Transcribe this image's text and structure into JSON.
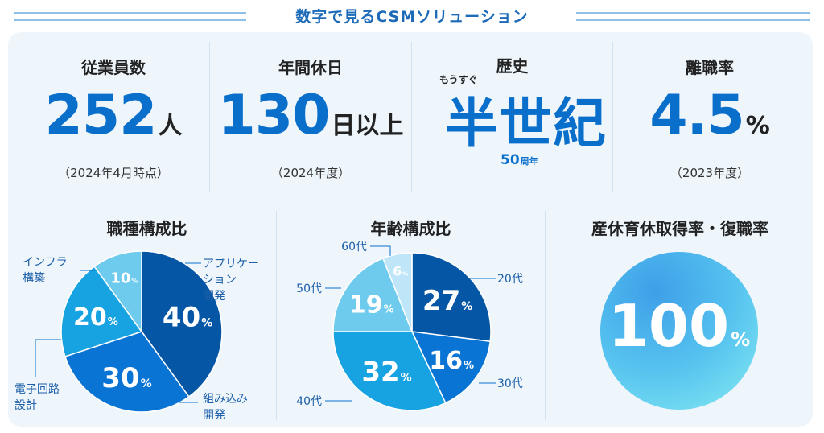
{
  "header": {
    "title": "数字で見るCSMソリューション"
  },
  "stats": {
    "employees": {
      "label": "従業員数",
      "value": "252",
      "unit": "人",
      "note": "（2024年4月時点）"
    },
    "holidays": {
      "label": "年間休日",
      "value": "130",
      "unit": "日以上",
      "note": "（2024年度）"
    },
    "history": {
      "label": "歴史",
      "ruby": "もうすぐ",
      "value": "半世紀",
      "years": "50",
      "years_unit": "周年"
    },
    "turnover": {
      "label": "離職率",
      "value": "4.5",
      "unit": "%",
      "note": "（2023年度）"
    }
  },
  "job_section": {
    "title": "職種構成比"
  },
  "age_section": {
    "title": "年齢構成比"
  },
  "leave_section": {
    "title": "産休育休取得率・復職率",
    "value": "100",
    "unit": "%"
  },
  "colors": {
    "accent": "#0a6fcb",
    "panel": "#eef6fc"
  },
  "chart_data": [
    {
      "type": "pie",
      "title": "職種構成比",
      "unit": "%",
      "slices": [
        {
          "label": "アプリケーション開発",
          "value": 40
        },
        {
          "label": "組み込み開発",
          "value": 30
        },
        {
          "label": "電子回路設計",
          "value": 20
        },
        {
          "label": "インフラ構築",
          "value": 10
        }
      ]
    },
    {
      "type": "pie",
      "title": "年齢構成比",
      "unit": "%",
      "slices": [
        {
          "label": "20代",
          "value": 27
        },
        {
          "label": "30代",
          "value": 16
        },
        {
          "label": "40代",
          "value": 32
        },
        {
          "label": "50代",
          "value": 19
        },
        {
          "label": "60代",
          "value": 6
        }
      ]
    }
  ]
}
